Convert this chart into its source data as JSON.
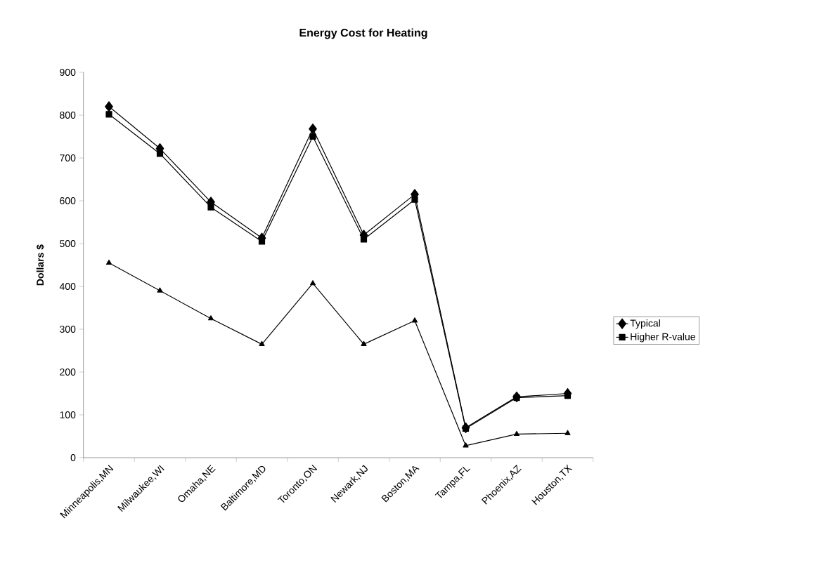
{
  "chart_data": {
    "type": "line",
    "title": "Energy Cost for Heating",
    "ylabel": "Dollars $",
    "categories": [
      "Minneapolis,MN",
      "Milwaukee,WI",
      "Omaha,NE",
      "Baltimore,MD",
      "Toronto,ON",
      "Newark,NJ",
      "Boston,MA",
      "Tampa,FL",
      "Phoenix,AZ",
      "Houston,TX"
    ],
    "ylim": [
      0,
      900
    ],
    "yticks": [
      0,
      100,
      200,
      300,
      400,
      500,
      600,
      700,
      800,
      900
    ],
    "legend": "right",
    "series": [
      {
        "name": "Typical",
        "color": "#000000",
        "marker": "diamond",
        "values": [
          820,
          722,
          597,
          513,
          768,
          520,
          615,
          70,
          142,
          150
        ]
      },
      {
        "name": "Higher R-value",
        "color": "#000000",
        "marker": "square",
        "values": [
          802,
          710,
          585,
          505,
          750,
          510,
          603,
          68,
          140,
          145
        ]
      },
      {
        "color": "#000000",
        "marker": "triangle",
        "values": [
          455,
          390,
          325,
          265,
          407,
          265,
          320,
          28,
          55,
          57
        ]
      }
    ]
  }
}
